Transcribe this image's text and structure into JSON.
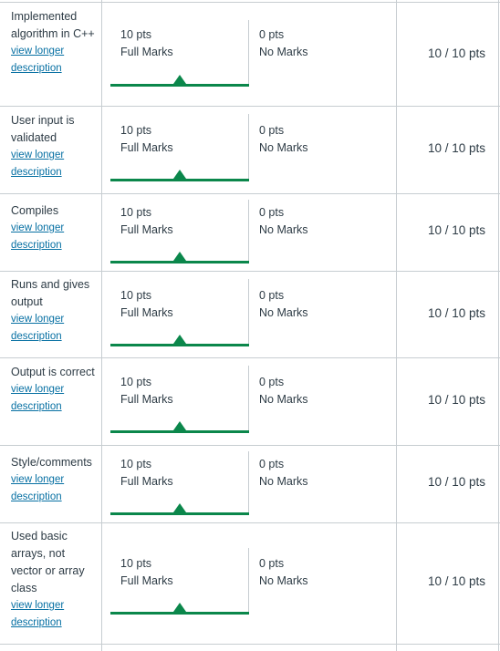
{
  "criteria": [
    {
      "name": "Implemented algorithm in C++",
      "link": "view longer description",
      "ratings": [
        {
          "pts": "10 pts",
          "label": "Full Marks"
        },
        {
          "pts": "0 pts",
          "label": "No Marks"
        }
      ],
      "score": "10 / 10 pts"
    },
    {
      "name": "User input is validated",
      "link": "view longer description",
      "ratings": [
        {
          "pts": "10 pts",
          "label": "Full Marks"
        },
        {
          "pts": "0 pts",
          "label": "No Marks"
        }
      ],
      "score": "10 / 10 pts"
    },
    {
      "name": "Compiles",
      "link": "view longer description",
      "ratings": [
        {
          "pts": "10 pts",
          "label": "Full Marks"
        },
        {
          "pts": "0 pts",
          "label": "No Marks"
        }
      ],
      "score": "10 / 10 pts"
    },
    {
      "name": "Runs and gives output",
      "link": "view longer description",
      "ratings": [
        {
          "pts": "10 pts",
          "label": "Full Marks"
        },
        {
          "pts": "0 pts",
          "label": "No Marks"
        }
      ],
      "score": "10 / 10 pts"
    },
    {
      "name": "Output is correct",
      "link": "view longer description",
      "ratings": [
        {
          "pts": "10 pts",
          "label": "Full Marks"
        },
        {
          "pts": "0 pts",
          "label": "No Marks"
        }
      ],
      "score": "10 / 10 pts"
    },
    {
      "name": "Style/comments",
      "link": "view longer description",
      "ratings": [
        {
          "pts": "10 pts",
          "label": "Full Marks"
        },
        {
          "pts": "0 pts",
          "label": "No Marks"
        }
      ],
      "score": "10 / 10 pts"
    },
    {
      "name": "Used basic arrays, not vector or array class",
      "link": "view longer description",
      "ratings": [
        {
          "pts": "10 pts",
          "label": "Full Marks"
        },
        {
          "pts": "0 pts",
          "label": "No Marks"
        }
      ],
      "score": "10 / 10 pts"
    }
  ],
  "colors": {
    "selected": "#0b874b",
    "link": "#0770a3",
    "border": "#c7cdd1"
  }
}
